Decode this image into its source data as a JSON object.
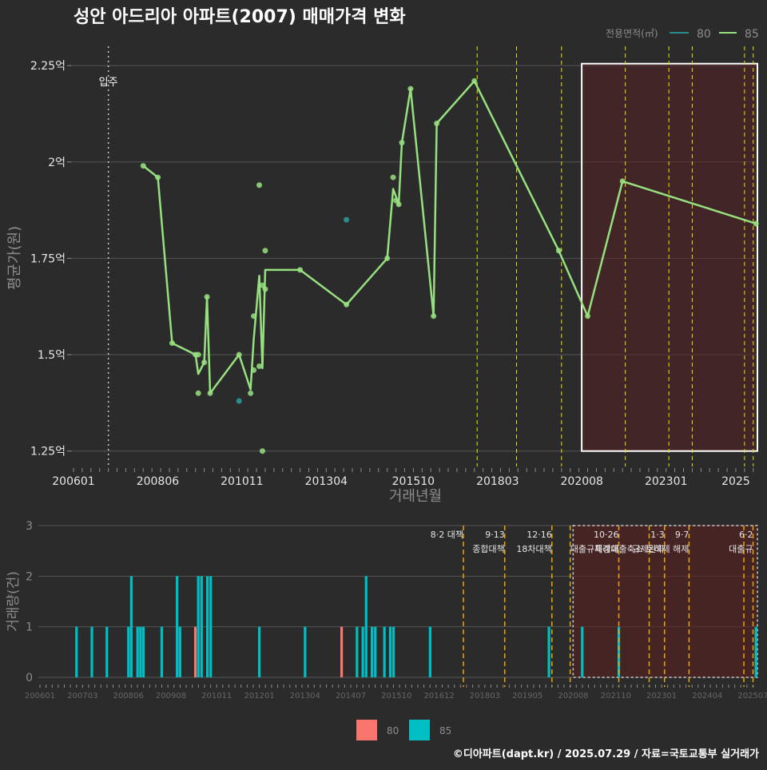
{
  "title": "성안 아드리아 아파트(2007) 매매가격 변화",
  "footer": "©디아파트(dapt.kr) / 2025.07.29 / 자료=국토교통부 실거래가",
  "colors": {
    "background": "#2b2b2c",
    "series80_line": "#2c8c8c",
    "series85_line": "#97e07f",
    "bar80": "#f8766d",
    "bar85": "#00bfc4",
    "policy_top": "#e6e600",
    "policy_bottom": "#e6a800",
    "highlight_fill": "#5a1f1f",
    "grid": "#555555",
    "text": "#e6e6e6",
    "muted": "#8c8c8c"
  },
  "chart_data": [
    {
      "type": "line",
      "title": "성안 아드리아 아파트(2007) 매매가격 변화",
      "xlabel": "거래년월",
      "ylabel": "평균가(원)",
      "x_ticks": [
        "200601",
        "200806",
        "201011",
        "201304",
        "201510",
        "201803",
        "202008",
        "202301",
        "2025"
      ],
      "y_ticks": [
        {
          "value": 1.25,
          "label": "1.25억"
        },
        {
          "value": 1.5,
          "label": "1.5억"
        },
        {
          "value": 1.75,
          "label": "1.75억"
        },
        {
          "value": 2.0,
          "label": "2억"
        },
        {
          "value": 2.25,
          "label": "2.25억"
        }
      ],
      "ylim": [
        1.21,
        2.3
      ],
      "legend": {
        "title": "전용면적(㎡)",
        "entries": [
          "80",
          "85"
        ],
        "position": "top-right"
      },
      "move_in": {
        "x": 2007.0,
        "label": "입주"
      },
      "highlight_range": [
        2020.58,
        2025.62,
        1.25,
        2.255
      ],
      "policy_lines": [
        2017.58,
        2018.71,
        2020.0,
        2021.83,
        2023.08,
        2023.75,
        2025.25,
        2025.5
      ],
      "series": [
        {
          "name": "80",
          "points": [
            [
              2010.75,
              1.38
            ],
            [
              2013.83,
              1.85
            ]
          ]
        },
        {
          "name": "85",
          "line": [
            [
              2008.0,
              1.99
            ],
            [
              2008.42,
              1.96
            ],
            [
              2008.83,
              1.53
            ],
            [
              2009.5,
              1.5
            ],
            [
              2009.58,
              1.45
            ],
            [
              2009.75,
              1.48
            ],
            [
              2009.83,
              1.65
            ],
            [
              2009.92,
              1.4
            ],
            [
              2010.75,
              1.5
            ],
            [
              2011.08,
              1.41
            ],
            [
              2011.17,
              1.54
            ],
            [
              2011.33,
              1.705
            ],
            [
              2011.42,
              1.465
            ],
            [
              2011.5,
              1.72
            ],
            [
              2012.5,
              1.72
            ],
            [
              2013.83,
              1.63
            ],
            [
              2015.0,
              1.75
            ],
            [
              2015.17,
              1.93
            ],
            [
              2015.33,
              1.89
            ],
            [
              2015.42,
              2.05
            ],
            [
              2015.67,
              2.19
            ],
            [
              2016.33,
              1.6
            ],
            [
              2016.42,
              2.1
            ],
            [
              2017.5,
              2.21
            ],
            [
              2019.92,
              1.77
            ],
            [
              2020.75,
              1.6
            ],
            [
              2021.75,
              1.95
            ],
            [
              2025.58,
              1.84
            ]
          ],
          "points": [
            [
              2008.0,
              1.99
            ],
            [
              2008.42,
              1.96
            ],
            [
              2008.83,
              1.53
            ],
            [
              2009.5,
              1.5
            ],
            [
              2009.58,
              1.4
            ],
            [
              2009.58,
              1.5
            ],
            [
              2009.75,
              1.48
            ],
            [
              2009.83,
              1.65
            ],
            [
              2009.92,
              1.4
            ],
            [
              2010.75,
              1.5
            ],
            [
              2011.08,
              1.4
            ],
            [
              2011.17,
              1.46
            ],
            [
              2011.17,
              1.6
            ],
            [
              2011.33,
              1.94
            ],
            [
              2011.33,
              1.47
            ],
            [
              2011.42,
              1.25
            ],
            [
              2011.42,
              1.68
            ],
            [
              2011.5,
              1.67
            ],
            [
              2011.5,
              1.77
            ],
            [
              2012.5,
              1.72
            ],
            [
              2013.83,
              1.63
            ],
            [
              2015.0,
              1.75
            ],
            [
              2015.17,
              1.96
            ],
            [
              2015.25,
              1.9
            ],
            [
              2015.33,
              1.89
            ],
            [
              2015.42,
              2.05
            ],
            [
              2015.67,
              2.19
            ],
            [
              2016.33,
              1.6
            ],
            [
              2016.42,
              2.1
            ],
            [
              2017.5,
              2.21
            ],
            [
              2019.92,
              1.77
            ],
            [
              2020.75,
              1.6
            ],
            [
              2021.75,
              1.95
            ],
            [
              2025.58,
              1.84
            ]
          ]
        }
      ]
    },
    {
      "type": "bar",
      "xlabel": "",
      "ylabel": "거래량(건)",
      "x_ticks": [
        "200601",
        "200703",
        "200806",
        "200908",
        "201011",
        "201201",
        "201304",
        "201407",
        "201510",
        "201612",
        "201803",
        "201905",
        "202008",
        "202110",
        "202301",
        "202404",
        "202507"
      ],
      "ylim": [
        0,
        3
      ],
      "y_ticks": [
        0,
        1,
        2,
        3
      ],
      "legend": {
        "entries": [
          "80",
          "85"
        ],
        "position": "bottom"
      },
      "highlight_range": [
        2020.58,
        2025.62
      ],
      "policies": [
        {
          "x": 2017.58,
          "label1": "8·2 대책",
          "label2": ""
        },
        {
          "x": 2018.71,
          "label1": "9·13",
          "label2": "종합대책"
        },
        {
          "x": 2020.0,
          "label1": "12·16",
          "label2": "18차대책"
        },
        {
          "x": 2020.5,
          "label1": "",
          "label2": ""
        },
        {
          "x": 2021.83,
          "label1": "10·26",
          "label2": "대출규제강화"
        },
        {
          "x": 2022.66,
          "label1": "",
          "label2": ""
        },
        {
          "x": 2023.08,
          "label1": "1·3",
          "label2": "규제완화"
        },
        {
          "x": 2023.75,
          "label1": "9·7",
          "label2": "특례대출축소 토허제 해제"
        },
        {
          "x": 2025.25,
          "label1": "",
          "label2": ""
        },
        {
          "x": 2025.5,
          "label1": "6·2",
          "label2": "대출규"
        }
      ],
      "bars85": [
        [
          2007.0,
          1
        ],
        [
          2007.42,
          1
        ],
        [
          2007.83,
          1
        ],
        [
          2008.42,
          1
        ],
        [
          2008.5,
          2
        ],
        [
          2008.67,
          1
        ],
        [
          2008.75,
          1
        ],
        [
          2008.83,
          1
        ],
        [
          2009.33,
          1
        ],
        [
          2009.75,
          2
        ],
        [
          2009.83,
          1
        ],
        [
          2010.33,
          2
        ],
        [
          2010.42,
          2
        ],
        [
          2010.58,
          2
        ],
        [
          2010.67,
          2
        ],
        [
          2012.0,
          1
        ],
        [
          2013.25,
          1
        ],
        [
          2014.67,
          1
        ],
        [
          2014.83,
          1
        ],
        [
          2014.92,
          2
        ],
        [
          2015.08,
          1
        ],
        [
          2015.17,
          1
        ],
        [
          2015.42,
          1
        ],
        [
          2015.58,
          1
        ],
        [
          2015.67,
          1
        ],
        [
          2016.67,
          1
        ],
        [
          2019.92,
          1
        ],
        [
          2020.83,
          1
        ],
        [
          2021.83,
          1
        ],
        [
          2025.58,
          1
        ]
      ],
      "bars80": [
        [
          2010.25,
          1
        ],
        [
          2014.25,
          1
        ]
      ]
    }
  ]
}
